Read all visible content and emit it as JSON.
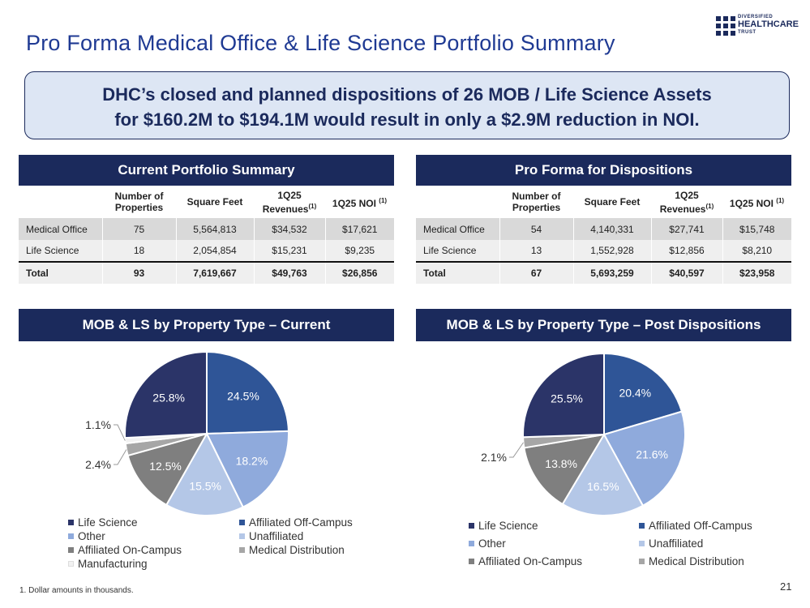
{
  "title": "Pro Forma Medical Office & Life Science Portfolio Summary",
  "logo": {
    "line1": "DIVERSIFIED",
    "line2": "HEALTHCARE",
    "line3": "TRUST"
  },
  "callout": {
    "line1": "DHC’s closed and planned dispositions of 26 MOB / Life Science Assets",
    "line2": "for $160.2M to $194.1M would result in only a $2.9M reduction in NOI."
  },
  "current_table": {
    "title": "Current Portfolio Summary",
    "columns": [
      "",
      "Number of Properties",
      "Square Feet",
      "1Q25 Revenues",
      "1Q25 NOI"
    ],
    "footnote_marker": "(1)",
    "rows": [
      [
        "Medical Office",
        "75",
        "5,564,813",
        "$34,532",
        "$17,621"
      ],
      [
        "Life Science",
        "18",
        "2,054,854",
        "$15,231",
        "$9,235"
      ],
      [
        "Total",
        "93",
        "7,619,667",
        "$49,763",
        "$26,856"
      ]
    ]
  },
  "proforma_table": {
    "title": "Pro Forma for Dispositions",
    "columns": [
      "",
      "Number of Properties",
      "Square Feet",
      "1Q25 Revenues",
      "1Q25 NOI"
    ],
    "footnote_marker": "(1)",
    "rows": [
      [
        "Medical Office",
        "54",
        "4,140,331",
        "$27,741",
        "$15,748"
      ],
      [
        "Life Science",
        "13",
        "1,552,928",
        "$12,856",
        "$8,210"
      ],
      [
        "Total",
        "67",
        "5,693,259",
        "$40,597",
        "$23,958"
      ]
    ]
  },
  "colors": {
    "life_science": "#2b3468",
    "affiliated_off_campus": "#2f5597",
    "other": "#8faadc",
    "unaffiliated": "#b4c7e7",
    "affiliated_on_campus": "#7f7f7f",
    "medical_distribution": "#a6a6a6",
    "manufacturing": "#f2f2f2"
  },
  "chart_data": [
    {
      "type": "pie",
      "title": "MOB & LS by Property Type – Current",
      "series": [
        {
          "name": "Affiliated Off-Campus",
          "value": 24.5,
          "label": "24.5%",
          "color": "#2f5597"
        },
        {
          "name": "Other",
          "value": 18.2,
          "label": "18.2%",
          "color": "#8faadc"
        },
        {
          "name": "Unaffiliated",
          "value": 15.5,
          "label": "15.5%",
          "color": "#b4c7e7"
        },
        {
          "name": "Affiliated On-Campus",
          "value": 12.5,
          "label": "12.5%",
          "color": "#7f7f7f"
        },
        {
          "name": "Medical Distribution",
          "value": 2.4,
          "label": "2.4%",
          "color": "#a6a6a6"
        },
        {
          "name": "Manufacturing",
          "value": 1.1,
          "label": "1.1%",
          "color": "#f2f2f2"
        },
        {
          "name": "Life Science",
          "value": 25.8,
          "label": "25.8%",
          "color": "#2b3468"
        }
      ],
      "legend": [
        "Life Science",
        "Affiliated Off-Campus",
        "Other",
        "Unaffiliated",
        "Affiliated On-Campus",
        "Medical Distribution",
        "Manufacturing"
      ],
      "legend_position": "bottom"
    },
    {
      "type": "pie",
      "title": "MOB & LS by Property Type – Post Dispositions",
      "series": [
        {
          "name": "Affiliated Off-Campus",
          "value": 20.4,
          "label": "20.4%",
          "color": "#2f5597"
        },
        {
          "name": "Other",
          "value": 21.6,
          "label": "21.6%",
          "color": "#8faadc"
        },
        {
          "name": "Unaffiliated",
          "value": 16.5,
          "label": "16.5%",
          "color": "#b4c7e7"
        },
        {
          "name": "Affiliated On-Campus",
          "value": 13.8,
          "label": "13.8%",
          "color": "#7f7f7f"
        },
        {
          "name": "Medical Distribution",
          "value": 2.1,
          "label": "2.1%",
          "color": "#a6a6a6"
        },
        {
          "name": "Life Science",
          "value": 25.5,
          "label": "25.5%",
          "color": "#2b3468"
        }
      ],
      "legend": [
        "Life Science",
        "Affiliated Off-Campus",
        "Other",
        "Unaffiliated",
        "Affiliated On-Campus",
        "Medical Distribution"
      ],
      "legend_position": "bottom"
    }
  ],
  "footnote": "1. Dollar amounts in thousands.",
  "page_number": "21"
}
